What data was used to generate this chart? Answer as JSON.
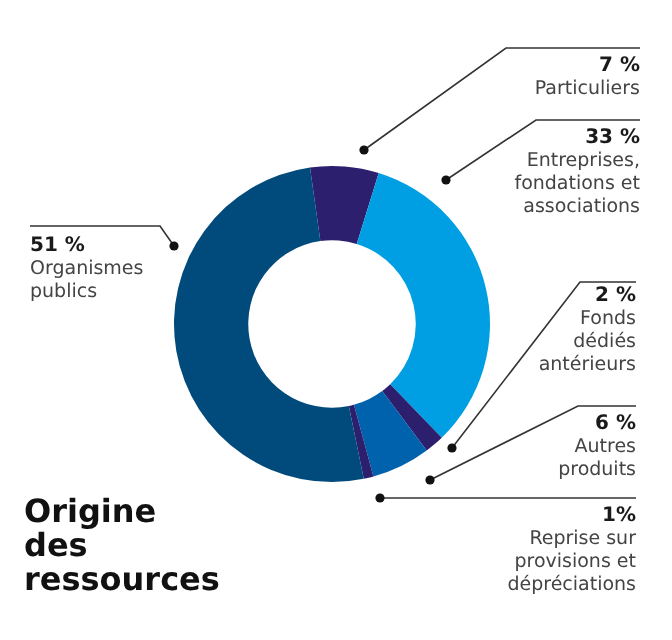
{
  "chart_data": {
    "type": "donut",
    "title": "Origine des ressources",
    "categories": [
      "Particuliers",
      "Entreprises, fondations et associations",
      "Fonds dédiés antérieurs",
      "Autres produits",
      "Reprise sur provisions et dépréciations",
      "Organismes publics"
    ],
    "values": [
      7,
      33,
      2,
      6,
      1,
      51
    ],
    "value_labels": [
      "7 %",
      "33 %",
      "2 %",
      "6 %",
      "1%",
      "51 %"
    ],
    "colors": [
      "#2b1f6e",
      "#009fe3",
      "#2b1f6e",
      "#0062ad",
      "#2b1f6e",
      "#014a7c"
    ],
    "legend": false
  }
}
